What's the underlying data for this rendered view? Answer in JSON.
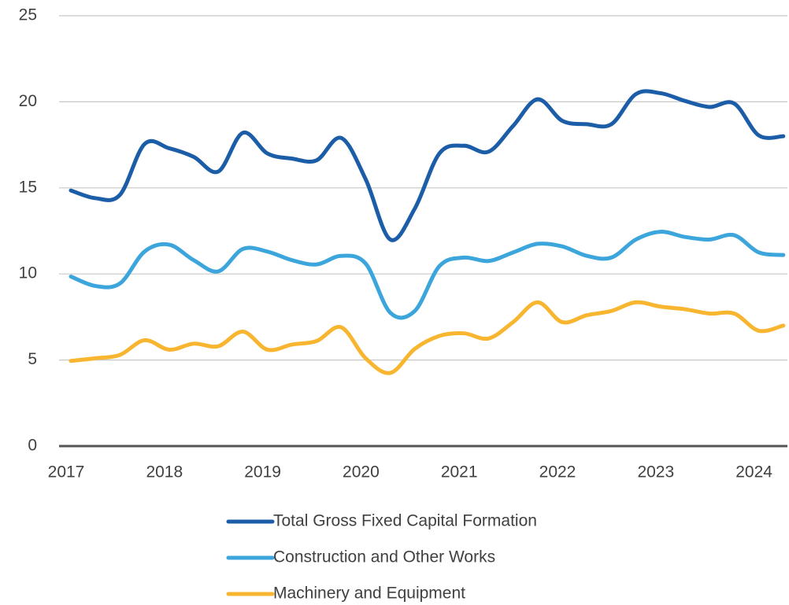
{
  "chart_data": {
    "type": "line",
    "categories": [
      "2017",
      null,
      null,
      null,
      "2018",
      null,
      null,
      null,
      "2019",
      null,
      null,
      null,
      "2020",
      null,
      null,
      null,
      "2021",
      null,
      null,
      null,
      "2022",
      null,
      null,
      null,
      "2023",
      null,
      null,
      null,
      "2024",
      null
    ],
    "series": [
      {
        "name": "Total Gross Fixed Capital Formation",
        "color": "#1c5da8",
        "values": [
          14.85,
          14.4,
          14.6,
          17.55,
          17.3,
          16.8,
          15.95,
          18.2,
          17.0,
          16.7,
          16.6,
          17.9,
          15.5,
          12.0,
          13.8,
          17.0,
          17.45,
          17.1,
          18.6,
          20.15,
          18.9,
          18.7,
          18.7,
          20.45,
          20.5,
          20.05,
          19.7,
          19.9,
          18.05,
          18.0
        ]
      },
      {
        "name": "Construction and Other Works",
        "color": "#3ca6dc",
        "values": [
          9.85,
          9.3,
          9.45,
          11.3,
          11.7,
          10.8,
          10.15,
          11.45,
          11.3,
          10.8,
          10.55,
          11.05,
          10.6,
          7.75,
          7.85,
          10.45,
          10.95,
          10.75,
          11.25,
          11.75,
          11.6,
          11.05,
          10.95,
          12.0,
          12.45,
          12.15,
          12.0,
          12.25,
          11.25,
          11.1
        ]
      },
      {
        "name": "Machinery and Equipment",
        "color": "#f8b530",
        "values": [
          4.95,
          5.1,
          5.3,
          6.15,
          5.6,
          5.95,
          5.8,
          6.65,
          5.6,
          5.9,
          6.1,
          6.9,
          5.1,
          4.25,
          5.65,
          6.4,
          6.55,
          6.25,
          7.2,
          8.35,
          7.2,
          7.6,
          7.85,
          8.35,
          8.1,
          7.95,
          7.7,
          7.7,
          6.7,
          7.0
        ]
      }
    ],
    "ylim": [
      0,
      25
    ],
    "yticks": [
      0,
      5,
      10,
      15,
      20,
      25
    ],
    "grid": true,
    "legend": "bottom"
  }
}
